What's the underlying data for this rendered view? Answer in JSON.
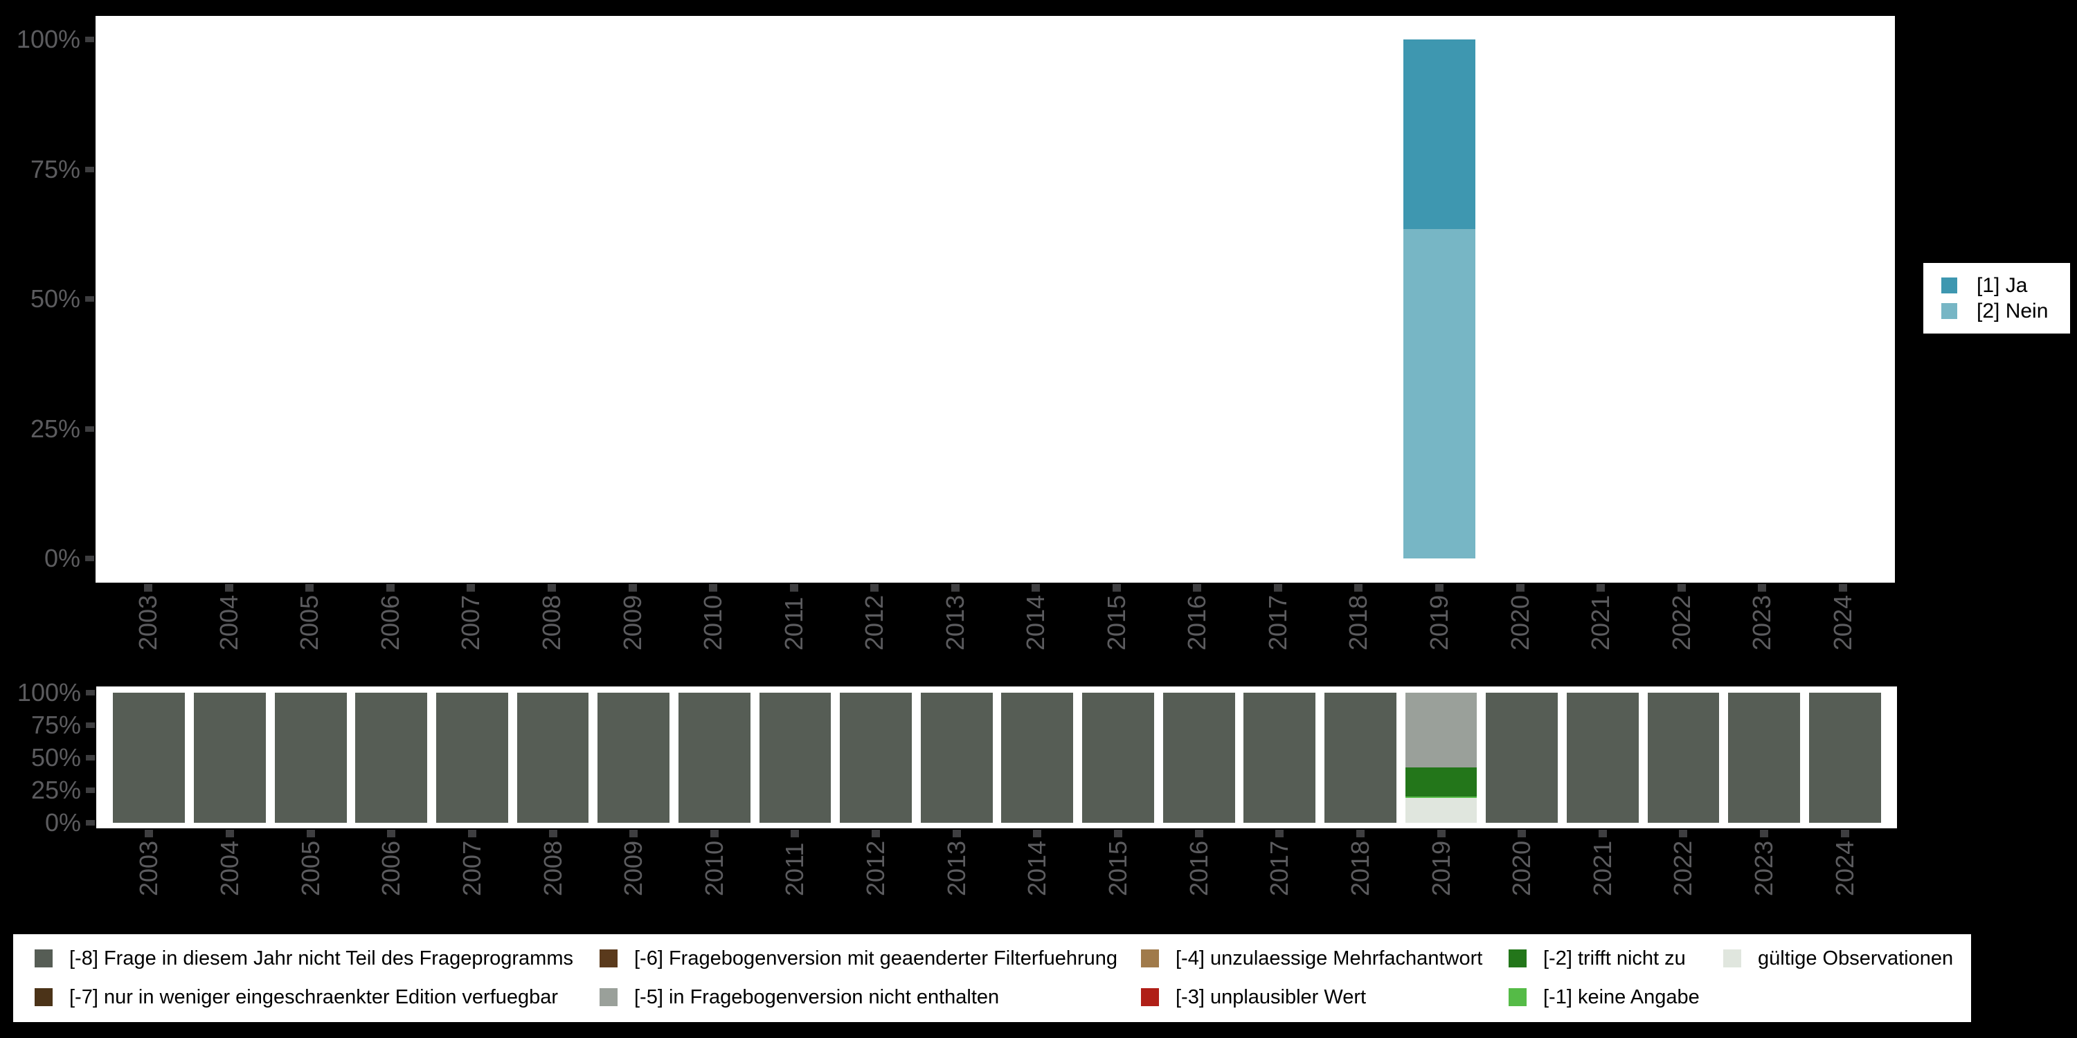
{
  "page": {
    "background": "#000000",
    "plot_background": "#ffffff",
    "axis_label_color": "#5c5c5f",
    "axis_tick_color": "#3e3e40",
    "legend_text_color": "#000000"
  },
  "chart_data": [
    {
      "id": "answers",
      "type": "bar",
      "stacked": true,
      "unit": "percent",
      "ylim": [
        0,
        100
      ],
      "grid": false,
      "legend_position": "right",
      "y_tick_values": [
        100,
        75,
        50,
        25,
        0
      ],
      "y_tick_labels": [
        "100%",
        "75%",
        "50%",
        "25%",
        "0%"
      ],
      "categories": [
        "2003",
        "2004",
        "2005",
        "2006",
        "2007",
        "2008",
        "2009",
        "2010",
        "2011",
        "2012",
        "2013",
        "2014",
        "2015",
        "2016",
        "2017",
        "2018",
        "2019",
        "2020",
        "2021",
        "2022",
        "2023",
        "2024"
      ],
      "series": [
        {
          "name": "[1] Ja",
          "color": "#3e97b0",
          "values": [
            null,
            null,
            null,
            null,
            null,
            null,
            null,
            null,
            null,
            null,
            null,
            null,
            null,
            null,
            null,
            null,
            36.5,
            null,
            null,
            null,
            null,
            null
          ]
        },
        {
          "name": "[2] Nein",
          "color": "#77b6c5",
          "values": [
            null,
            null,
            null,
            null,
            null,
            null,
            null,
            null,
            null,
            null,
            null,
            null,
            null,
            null,
            null,
            null,
            63.5,
            null,
            null,
            null,
            null,
            null
          ]
        }
      ]
    },
    {
      "id": "missings",
      "type": "bar",
      "stacked": true,
      "unit": "percent",
      "ylim": [
        0,
        100
      ],
      "grid": false,
      "legend_position": "bottom",
      "y_tick_values": [
        100,
        75,
        50,
        25,
        0
      ],
      "y_tick_labels": [
        "100%",
        "75%",
        "50%",
        "25%",
        "0%"
      ],
      "categories": [
        "2003",
        "2004",
        "2005",
        "2006",
        "2007",
        "2008",
        "2009",
        "2010",
        "2011",
        "2012",
        "2013",
        "2014",
        "2015",
        "2016",
        "2017",
        "2018",
        "2019",
        "2020",
        "2021",
        "2022",
        "2023",
        "2024"
      ],
      "series": [
        {
          "name": "[-8] Frage in diesem Jahr nicht Teil des Frageprogramms",
          "color": "#565d55",
          "values": [
            100,
            100,
            100,
            100,
            100,
            100,
            100,
            100,
            100,
            100,
            100,
            100,
            100,
            100,
            100,
            100,
            0,
            100,
            100,
            100,
            100,
            100
          ]
        },
        {
          "name": "[-7] nur in weniger eingeschraenkter Edition verfuegbar",
          "color": "#4b3318",
          "values": [
            0,
            0,
            0,
            0,
            0,
            0,
            0,
            0,
            0,
            0,
            0,
            0,
            0,
            0,
            0,
            0,
            0,
            0,
            0,
            0,
            0,
            0
          ]
        },
        {
          "name": "[-6] Fragebogenversion mit geaenderter Filterfuehrung",
          "color": "#5a3a1c",
          "values": [
            0,
            0,
            0,
            0,
            0,
            0,
            0,
            0,
            0,
            0,
            0,
            0,
            0,
            0,
            0,
            0,
            0,
            0,
            0,
            0,
            0,
            0
          ]
        },
        {
          "name": "[-5] in Fragebogenversion nicht enthalten",
          "color": "#9aa09a",
          "values": [
            0,
            0,
            0,
            0,
            0,
            0,
            0,
            0,
            0,
            0,
            0,
            0,
            0,
            0,
            0,
            0,
            57.5,
            0,
            0,
            0,
            0,
            0
          ]
        },
        {
          "name": "[-4] unzulaessige Mehrfachantwort",
          "color": "#a07a4a",
          "values": [
            0,
            0,
            0,
            0,
            0,
            0,
            0,
            0,
            0,
            0,
            0,
            0,
            0,
            0,
            0,
            0,
            0,
            0,
            0,
            0,
            0,
            0
          ]
        },
        {
          "name": "[-3] unplausibler Wert",
          "color": "#b01f17",
          "values": [
            0,
            0,
            0,
            0,
            0,
            0,
            0,
            0,
            0,
            0,
            0,
            0,
            0,
            0,
            0,
            0,
            0,
            0,
            0,
            0,
            0,
            0
          ]
        },
        {
          "name": "[-2] trifft nicht zu",
          "color": "#23761a",
          "values": [
            0,
            0,
            0,
            0,
            0,
            0,
            0,
            0,
            0,
            0,
            0,
            0,
            0,
            0,
            0,
            0,
            22.5,
            0,
            0,
            0,
            0,
            0
          ]
        },
        {
          "name": "[-1] keine Angabe",
          "color": "#55bb47",
          "values": [
            0,
            0,
            0,
            0,
            0,
            0,
            0,
            0,
            0,
            0,
            0,
            0,
            0,
            0,
            0,
            0,
            1,
            0,
            0,
            0,
            0,
            0
          ]
        },
        {
          "name": "gültige Observationen",
          "color": "#e0e6de",
          "values": [
            0,
            0,
            0,
            0,
            0,
            0,
            0,
            0,
            0,
            0,
            0,
            0,
            0,
            0,
            0,
            0,
            19,
            0,
            0,
            0,
            0,
            0
          ]
        }
      ]
    }
  ]
}
